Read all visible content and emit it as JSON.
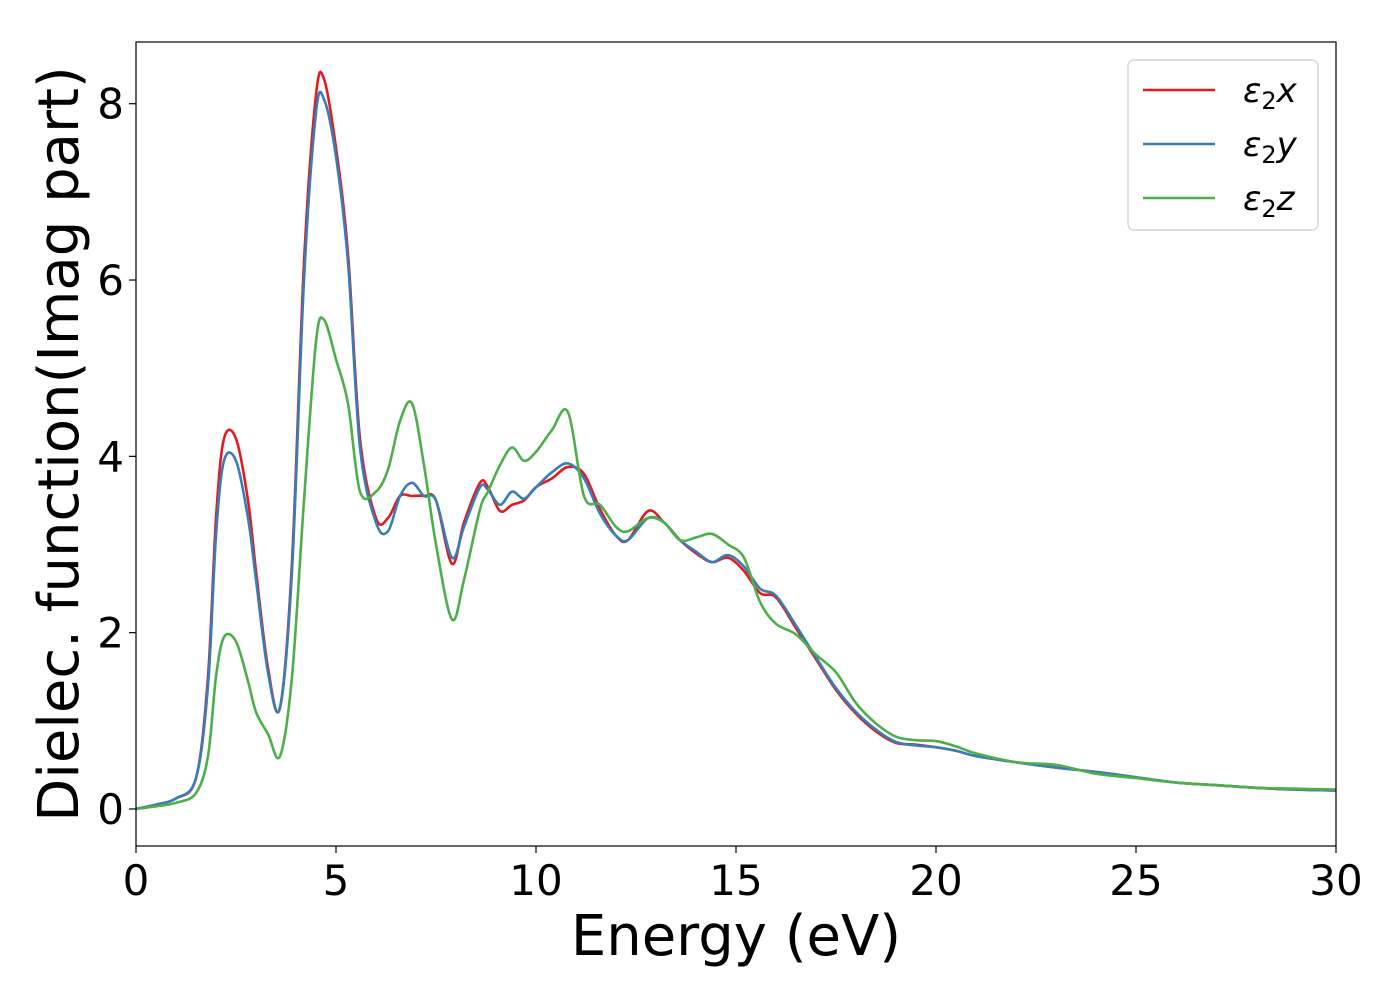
{
  "chart_data": {
    "type": "line",
    "xlabel": "Energy (eV)",
    "ylabel": "Dielec. function(Imag part)",
    "xlim": [
      0,
      30
    ],
    "ylim": [
      -0.42,
      8.7
    ],
    "xticks": [
      0,
      5,
      10,
      15,
      20,
      25,
      30
    ],
    "xtick_labels": [
      "0",
      "5",
      "10",
      "15",
      "20",
      "25",
      "30"
    ],
    "yticks": [
      0,
      2,
      4,
      6,
      8
    ],
    "ytick_labels": [
      "0",
      "2",
      "4",
      "6",
      "8"
    ],
    "grid": false,
    "legend_position": "top-right",
    "series": [
      {
        "name": "ε2x",
        "legend_base": "ε",
        "legend_sub": "2",
        "legend_suffix": "x",
        "color": "#e41a1c",
        "x": [
          0,
          0.5,
          1.0,
          1.5,
          1.8,
          2.0,
          2.2,
          2.5,
          2.8,
          3.0,
          3.3,
          3.6,
          3.9,
          4.2,
          4.5,
          4.7,
          5.0,
          5.3,
          5.6,
          6.0,
          6.3,
          6.6,
          6.9,
          7.2,
          7.5,
          7.9,
          8.2,
          8.6,
          8.8,
          9.1,
          9.4,
          9.7,
          10.0,
          10.4,
          10.8,
          11.2,
          11.6,
          12.0,
          12.3,
          12.8,
          13.2,
          13.6,
          14.0,
          14.4,
          14.8,
          15.2,
          15.6,
          16.0,
          16.5,
          17.0,
          17.5,
          18.0,
          18.5,
          19.0,
          19.5,
          20.0,
          20.5,
          21.0,
          22.0,
          23.0,
          24.0,
          25.0,
          26.0,
          27.0,
          28.0,
          29.0,
          30.0
        ],
        "y": [
          0.0,
          0.05,
          0.12,
          0.35,
          1.5,
          3.3,
          4.2,
          4.2,
          3.5,
          2.7,
          1.6,
          1.15,
          2.8,
          6.2,
          8.1,
          8.28,
          7.5,
          6.3,
          4.2,
          3.3,
          3.3,
          3.55,
          3.55,
          3.55,
          3.5,
          2.78,
          3.25,
          3.7,
          3.65,
          3.38,
          3.45,
          3.5,
          3.65,
          3.75,
          3.88,
          3.8,
          3.4,
          3.1,
          3.05,
          3.38,
          3.25,
          3.05,
          2.9,
          2.8,
          2.85,
          2.7,
          2.45,
          2.4,
          2.05,
          1.7,
          1.35,
          1.08,
          0.88,
          0.75,
          0.73,
          0.7,
          0.66,
          0.6,
          0.53,
          0.47,
          0.42,
          0.36,
          0.3,
          0.27,
          0.24,
          0.22,
          0.21
        ]
      },
      {
        "name": "ε2y",
        "legend_base": "ε",
        "legend_sub": "2",
        "legend_suffix": "y",
        "color": "#377eb8",
        "x": [
          0,
          0.5,
          1.0,
          1.5,
          1.8,
          2.0,
          2.2,
          2.5,
          2.8,
          3.0,
          3.3,
          3.6,
          3.9,
          4.2,
          4.5,
          4.7,
          5.0,
          5.3,
          5.6,
          6.0,
          6.3,
          6.6,
          6.9,
          7.2,
          7.5,
          7.9,
          8.2,
          8.6,
          8.8,
          9.1,
          9.4,
          9.7,
          10.0,
          10.4,
          10.8,
          11.2,
          11.6,
          12.0,
          12.3,
          12.8,
          13.2,
          13.6,
          14.0,
          14.4,
          14.8,
          15.2,
          15.6,
          16.0,
          16.5,
          17.0,
          17.5,
          18.0,
          18.5,
          19.0,
          19.5,
          20.0,
          20.5,
          21.0,
          22.0,
          23.0,
          24.0,
          25.0,
          26.0,
          27.0,
          28.0,
          29.0,
          30.0
        ],
        "y": [
          0.0,
          0.05,
          0.12,
          0.35,
          1.4,
          3.1,
          3.95,
          3.95,
          3.3,
          2.6,
          1.55,
          1.15,
          2.7,
          6.0,
          7.9,
          8.05,
          7.4,
          6.2,
          4.1,
          3.25,
          3.15,
          3.55,
          3.7,
          3.55,
          3.5,
          2.85,
          3.2,
          3.65,
          3.62,
          3.45,
          3.6,
          3.52,
          3.65,
          3.82,
          3.92,
          3.75,
          3.35,
          3.1,
          3.05,
          3.3,
          3.25,
          3.05,
          2.92,
          2.8,
          2.88,
          2.75,
          2.5,
          2.42,
          2.08,
          1.72,
          1.37,
          1.1,
          0.9,
          0.76,
          0.72,
          0.7,
          0.66,
          0.6,
          0.53,
          0.47,
          0.42,
          0.36,
          0.3,
          0.27,
          0.24,
          0.22,
          0.21
        ]
      },
      {
        "name": "ε2z",
        "legend_base": "ε",
        "legend_sub": "2",
        "legend_suffix": "z",
        "color": "#4daf4a",
        "x": [
          0,
          0.5,
          1.0,
          1.5,
          1.8,
          2.0,
          2.2,
          2.5,
          2.8,
          3.0,
          3.3,
          3.6,
          3.9,
          4.2,
          4.5,
          4.7,
          5.0,
          5.3,
          5.6,
          6.0,
          6.3,
          6.6,
          6.9,
          7.2,
          7.5,
          7.9,
          8.2,
          8.6,
          8.8,
          9.1,
          9.4,
          9.7,
          10.0,
          10.4,
          10.8,
          11.2,
          11.6,
          12.0,
          12.3,
          12.8,
          13.2,
          13.6,
          14.0,
          14.4,
          14.8,
          15.2,
          15.6,
          16.0,
          16.5,
          17.0,
          17.5,
          18.0,
          18.5,
          19.0,
          19.5,
          20.0,
          20.5,
          21.0,
          22.0,
          23.0,
          24.0,
          25.0,
          26.0,
          27.0,
          28.0,
          29.0,
          30.0
        ],
        "y": [
          0.0,
          0.03,
          0.07,
          0.18,
          0.6,
          1.5,
          1.95,
          1.9,
          1.45,
          1.1,
          0.85,
          0.6,
          1.5,
          3.5,
          5.3,
          5.55,
          5.1,
          4.6,
          3.6,
          3.6,
          3.85,
          4.4,
          4.6,
          3.9,
          3.0,
          2.15,
          2.6,
          3.4,
          3.6,
          3.9,
          4.1,
          3.95,
          4.05,
          4.3,
          4.5,
          3.55,
          3.45,
          3.2,
          3.15,
          3.3,
          3.25,
          3.05,
          3.08,
          3.12,
          3.0,
          2.85,
          2.35,
          2.1,
          1.98,
          1.75,
          1.55,
          1.2,
          0.97,
          0.82,
          0.78,
          0.77,
          0.71,
          0.63,
          0.53,
          0.5,
          0.4,
          0.35,
          0.3,
          0.27,
          0.24,
          0.23,
          0.22
        ]
      }
    ]
  }
}
